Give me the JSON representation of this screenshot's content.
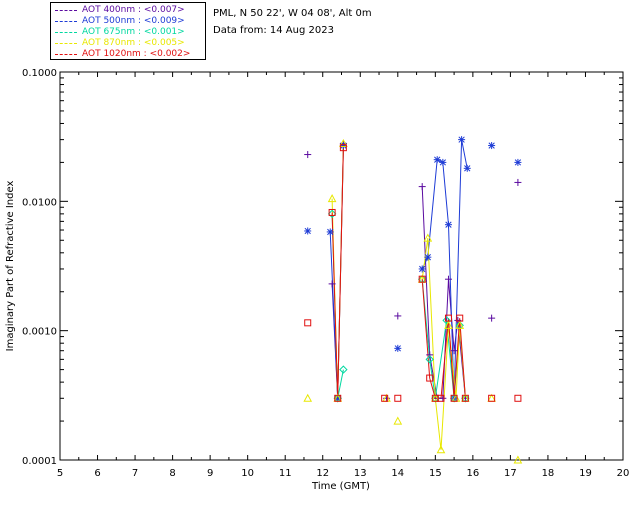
{
  "header": {
    "site": "PML, N 50 22', W 04 08', Alt 0m",
    "date": "Data from: 14 Aug 2023"
  },
  "legend": [
    {
      "label": "AOT  400nm : <0.007>",
      "color": "#5a0aa0"
    },
    {
      "label": "AOT  500nm : <0.009>",
      "color": "#1d3bd6"
    },
    {
      "label": "AOT  675nm : <0.001>",
      "color": "#00d8a0"
    },
    {
      "label": "AOT  870nm : <0.005>",
      "color": "#e8e800"
    },
    {
      "label": "AOT 1020nm : <0.002>",
      "color": "#e01010"
    }
  ],
  "chart_data": {
    "type": "scatter",
    "xlabel": "Time (GMT)",
    "ylabel": "Imaginary Part of Refractive Index",
    "xlim": [
      5,
      20
    ],
    "ylim": [
      0.0001,
      0.1
    ],
    "yscale": "log",
    "xticks": [
      "5",
      "6",
      "7",
      "8",
      "9",
      "10",
      "11",
      "12",
      "13",
      "14",
      "15",
      "16",
      "17",
      "18",
      "19",
      "20"
    ],
    "yticks": [
      "0.0001",
      "0.0010",
      "0.0100",
      "0.1000"
    ],
    "series": [
      {
        "name": "AOT  400nm : <0.007>",
        "color": "#5a0aa0",
        "marker": "plus",
        "points": [
          [
            11.6,
            0.023
          ],
          [
            12.25,
            0.0023
          ],
          [
            12.4,
            0.0003
          ],
          [
            12.55,
            0.028
          ],
          [
            13.7,
            0.0003
          ],
          [
            14.0,
            0.0013
          ],
          [
            14.65,
            0.013
          ],
          [
            14.85,
            0.00065
          ],
          [
            15.05,
            0.0003
          ],
          [
            15.2,
            0.0003
          ],
          [
            15.35,
            0.0025
          ],
          [
            15.5,
            0.0007
          ],
          [
            15.6,
            0.0012
          ],
          [
            15.8,
            0.0003
          ],
          [
            16.5,
            0.00125
          ],
          [
            17.2,
            0.014
          ]
        ]
      },
      {
        "name": "AOT  500nm : <0.009>",
        "color": "#1d3bd6",
        "marker": "asterisk",
        "points": [
          [
            11.6,
            0.0059
          ],
          [
            12.2,
            0.0058
          ],
          [
            12.4,
            0.0003
          ],
          [
            12.55,
            0.027
          ],
          [
            14.0,
            0.00073
          ],
          [
            14.65,
            0.003
          ],
          [
            14.8,
            0.0037
          ],
          [
            15.05,
            0.021
          ],
          [
            15.2,
            0.02
          ],
          [
            15.35,
            0.0066
          ],
          [
            15.5,
            0.0003
          ],
          [
            15.7,
            0.03
          ],
          [
            15.85,
            0.018
          ],
          [
            16.5,
            0.027
          ],
          [
            17.2,
            0.02
          ]
        ]
      },
      {
        "name": "AOT  675nm : <0.001>",
        "color": "#00d8a0",
        "marker": "diamond",
        "points": [
          [
            12.25,
            0.008
          ],
          [
            12.4,
            0.0003
          ],
          [
            12.55,
            0.0005
          ],
          [
            14.65,
            0.0025
          ],
          [
            14.85,
            0.0006
          ],
          [
            15.0,
            0.0003
          ],
          [
            15.3,
            0.0012
          ],
          [
            15.5,
            0.0003
          ],
          [
            15.65,
            0.0011
          ],
          [
            15.8,
            0.0003
          ]
        ]
      },
      {
        "name": "AOT  870nm : <0.005>",
        "color": "#e8e800",
        "marker": "triangle",
        "points": [
          [
            11.6,
            0.0003
          ],
          [
            12.25,
            0.0105
          ],
          [
            12.4,
            0.0003
          ],
          [
            12.55,
            0.028
          ],
          [
            13.7,
            0.0003
          ],
          [
            14.0,
            0.0002
          ],
          [
            14.65,
            0.0025
          ],
          [
            14.8,
            0.0052
          ],
          [
            15.0,
            0.0003
          ],
          [
            15.15,
            0.00012
          ],
          [
            15.35,
            0.0011
          ],
          [
            15.55,
            0.0003
          ],
          [
            15.65,
            0.0011
          ],
          [
            15.8,
            0.0003
          ],
          [
            16.5,
            0.0003
          ],
          [
            17.2,
            0.0001
          ]
        ]
      },
      {
        "name": "AOT 1020nm : <0.002>",
        "color": "#e01010",
        "marker": "square",
        "points": [
          [
            11.6,
            0.00115
          ],
          [
            12.25,
            0.0082
          ],
          [
            12.4,
            0.0003
          ],
          [
            12.55,
            0.026
          ],
          [
            13.65,
            0.0003
          ],
          [
            14.0,
            0.0003
          ],
          [
            14.65,
            0.0025
          ],
          [
            14.85,
            0.00043
          ],
          [
            15.0,
            0.0003
          ],
          [
            15.15,
            0.0003
          ],
          [
            15.35,
            0.00125
          ],
          [
            15.5,
            0.0003
          ],
          [
            15.65,
            0.00125
          ],
          [
            15.8,
            0.0003
          ],
          [
            16.5,
            0.0003
          ],
          [
            17.2,
            0.0003
          ]
        ]
      }
    ],
    "lines": [
      {
        "series": 0,
        "segments": [
          [
            [
              12.25,
              0.0023
            ],
            [
              12.4,
              0.0003
            ],
            [
              12.55,
              0.028
            ]
          ],
          [
            [
              14.65,
              0.013
            ],
            [
              14.85,
              0.00065
            ],
            [
              15.05,
              0.0003
            ],
            [
              15.2,
              0.0003
            ],
            [
              15.35,
              0.0025
            ],
            [
              15.5,
              0.0007
            ],
            [
              15.6,
              0.0012
            ],
            [
              15.8,
              0.0003
            ]
          ]
        ]
      },
      {
        "series": 1,
        "segments": [
          [
            [
              12.2,
              0.0058
            ],
            [
              12.4,
              0.0003
            ],
            [
              12.55,
              0.027
            ]
          ],
          [
            [
              14.65,
              0.003
            ],
            [
              14.8,
              0.0037
            ],
            [
              15.05,
              0.021
            ],
            [
              15.2,
              0.02
            ],
            [
              15.35,
              0.0066
            ],
            [
              15.5,
              0.0003
            ],
            [
              15.7,
              0.03
            ],
            [
              15.85,
              0.018
            ]
          ]
        ]
      },
      {
        "series": 2,
        "segments": [
          [
            [
              12.25,
              0.008
            ],
            [
              12.4,
              0.0003
            ],
            [
              12.55,
              0.0005
            ]
          ],
          [
            [
              14.65,
              0.0025
            ],
            [
              14.85,
              0.0006
            ],
            [
              15.0,
              0.0003
            ],
            [
              15.3,
              0.0012
            ],
            [
              15.5,
              0.0003
            ],
            [
              15.65,
              0.0011
            ],
            [
              15.8,
              0.0003
            ]
          ]
        ]
      },
      {
        "series": 3,
        "segments": [
          [
            [
              12.25,
              0.0105
            ],
            [
              12.4,
              0.0003
            ],
            [
              12.55,
              0.028
            ]
          ],
          [
            [
              14.65,
              0.0025
            ],
            [
              14.8,
              0.0052
            ],
            [
              15.0,
              0.0003
            ],
            [
              15.15,
              0.00012
            ],
            [
              15.35,
              0.0011
            ],
            [
              15.55,
              0.0003
            ],
            [
              15.65,
              0.0011
            ],
            [
              15.8,
              0.0003
            ]
          ]
        ]
      },
      {
        "series": 4,
        "segments": [
          [
            [
              12.25,
              0.0082
            ],
            [
              12.4,
              0.0003
            ],
            [
              12.55,
              0.026
            ]
          ],
          [
            [
              14.65,
              0.0025
            ],
            [
              14.85,
              0.00043
            ],
            [
              15.0,
              0.0003
            ],
            [
              15.15,
              0.0003
            ],
            [
              15.35,
              0.00125
            ],
            [
              15.5,
              0.0003
            ],
            [
              15.65,
              0.00125
            ],
            [
              15.8,
              0.0003
            ]
          ]
        ]
      }
    ]
  }
}
